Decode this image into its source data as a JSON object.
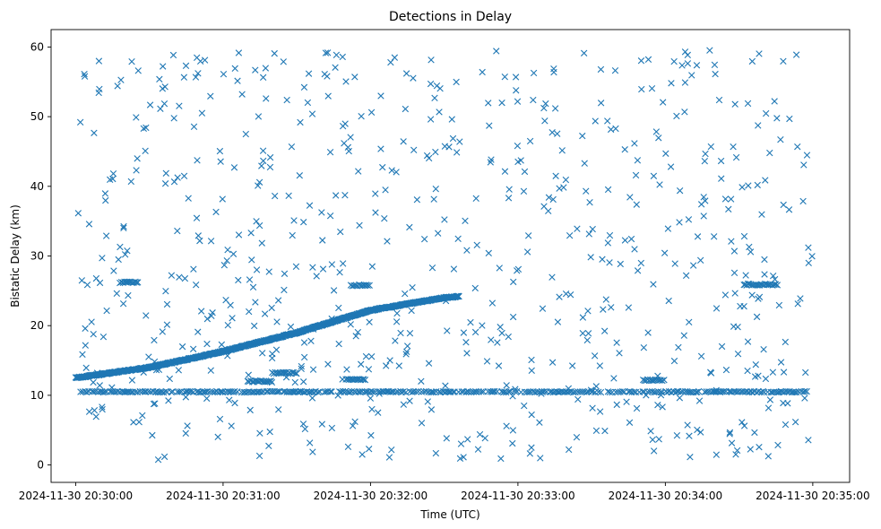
{
  "chart_data": {
    "type": "scatter",
    "title": "Detections in Delay",
    "xlabel": "Time (UTC)",
    "ylabel": "Bistatic Delay (km)",
    "x_unit": "UTC time",
    "x_range": [
      "2024-11-30 20:29:50",
      "2024-11-30 20:35:15"
    ],
    "ylim": [
      -2.5,
      62.5
    ],
    "x_ticks": [
      "2024-11-30 20:30:00",
      "2024-11-30 20:31:00",
      "2024-11-30 20:32:00",
      "2024-11-30 20:33:00",
      "2024-11-30 20:34:00",
      "2024-11-30 20:35:00"
    ],
    "y_ticks": [
      "0",
      "10",
      "20",
      "30",
      "40",
      "50",
      "60"
    ],
    "grid": false,
    "marker": "x",
    "marker_color": "#1f77b4",
    "features": {
      "target_track": {
        "description": "curved track rising from ~12.5 km to ~24 km",
        "points": [
          [
            "2024-11-30 20:30:00",
            12.5
          ],
          [
            "2024-11-30 20:30:30",
            14.0
          ],
          [
            "2024-11-30 20:31:00",
            16.3
          ],
          [
            "2024-11-30 20:31:30",
            19.0
          ],
          [
            "2024-11-30 20:32:00",
            22.2
          ],
          [
            "2024-11-30 20:32:30",
            24.0
          ],
          [
            "2024-11-30 20:32:36",
            24.2
          ]
        ]
      },
      "constant_line": {
        "y": 10.5,
        "from": "2024-11-30 20:30:02",
        "to": "2024-11-30 20:34:58"
      },
      "short_segments": [
        {
          "from": "2024-11-30 20:30:18",
          "to": "2024-11-30 20:30:26",
          "y": 26.2
        },
        {
          "from": "2024-11-30 20:31:10",
          "to": "2024-11-30 20:31:20",
          "y": 12.0
        },
        {
          "from": "2024-11-30 20:31:20",
          "to": "2024-11-30 20:31:30",
          "y": 13.2
        },
        {
          "from": "2024-11-30 20:31:50",
          "to": "2024-11-30 20:31:58",
          "y": 12.3
        },
        {
          "from": "2024-11-30 20:31:52",
          "to": "2024-11-30 20:32:00",
          "y": 25.8
        },
        {
          "from": "2024-11-30 20:33:51",
          "to": "2024-11-30 20:34:00",
          "y": 12.2
        },
        {
          "from": "2024-11-30 20:34:32",
          "to": "2024-11-30 20:34:46",
          "y": 25.9
        }
      ],
      "clutter": {
        "description": "scattered detections uniformly spread between 0 and 60 km",
        "approx_count": 700,
        "y_range": [
          0.5,
          59.8
        ]
      }
    }
  }
}
